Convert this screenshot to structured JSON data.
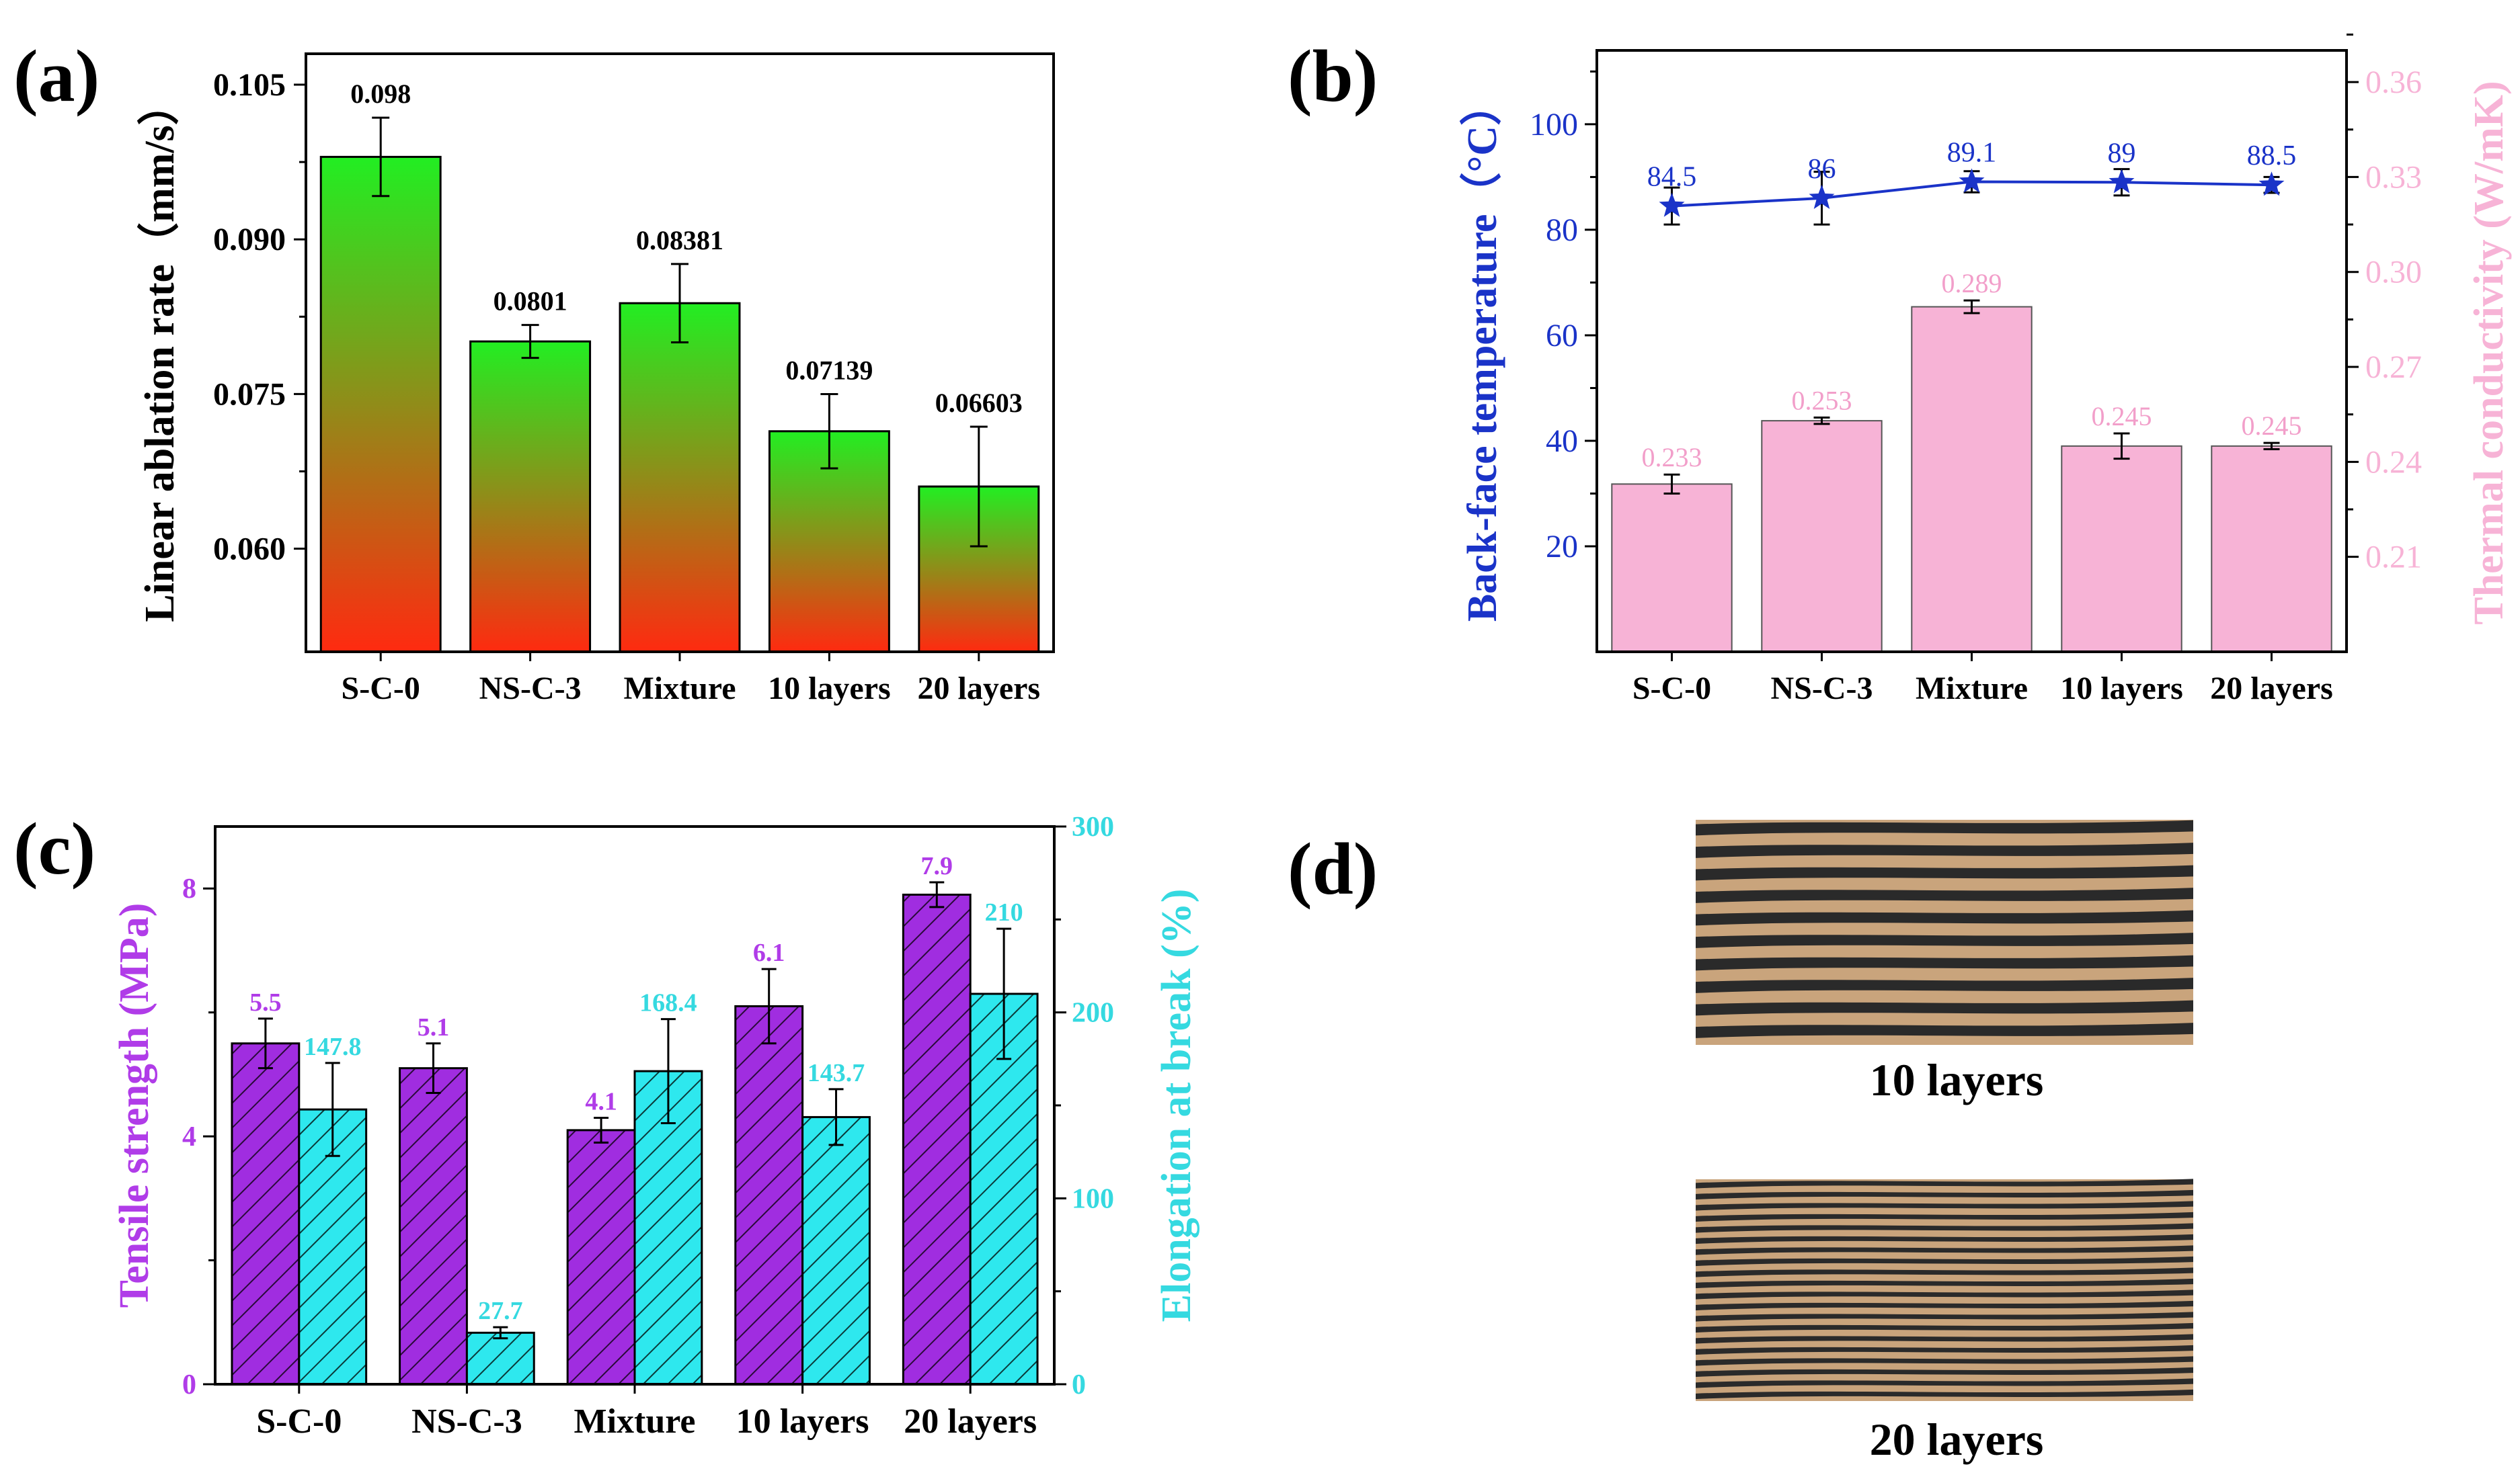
{
  "colors": {
    "axis": "#000000",
    "bar_top_green": "#22ee22",
    "bar_bottom_red": "#ff2a10",
    "temp_line": "#1a33c8",
    "thermal_bar": "#f7b3d6",
    "thermal_label": "#f29fca",
    "tensile_bar": "#a02de0",
    "tensile_label": "#b03ce8",
    "elong_bar": "#2ee8ee",
    "elong_label": "#35d9e0"
  },
  "chart_data": [
    {
      "panel": "(a)",
      "type": "bar",
      "ylabel": "Linear ablation rate（mm/s）",
      "categories": [
        "S-C-0",
        "NS-C-3",
        "Mixture",
        "10 layers",
        "20 layers"
      ],
      "values": [
        0.098,
        0.0801,
        0.08381,
        0.07139,
        0.06603
      ],
      "value_labels": [
        "0.098",
        "0.0801",
        "0.08381",
        "0.07139",
        "0.06603"
      ],
      "errors": [
        0.0038,
        0.0016,
        0.0038,
        0.0036,
        0.0058
      ],
      "ylim": [
        0.05,
        0.108
      ],
      "yticks": [
        0.06,
        0.075,
        0.09,
        0.105
      ],
      "ytick_labels": [
        "0.060",
        "0.075",
        "0.090",
        "0.105"
      ]
    },
    {
      "panel": "(b)",
      "type": "bar+line",
      "categories": [
        "S-C-0",
        "NS-C-3",
        "Mixture",
        "10 layers",
        "20 layers"
      ],
      "line": {
        "name": "Back-face temperature",
        "ylabel": "Back-face temperature（°C）",
        "values": [
          84.5,
          86,
          89.1,
          89,
          88.5
        ],
        "value_labels": [
          "84.5",
          "86",
          "89.1",
          "89",
          "88.5"
        ],
        "errors": [
          3.5,
          5.0,
          2.0,
          2.5,
          1.5
        ],
        "ylim": [
          0,
          114
        ],
        "yticks": [
          20,
          40,
          60,
          80,
          100
        ]
      },
      "bars": {
        "name": "Thermal conductivity",
        "ylabel": "Thermal conductivity (W/mK)",
        "values": [
          0.233,
          0.253,
          0.289,
          0.245,
          0.245
        ],
        "value_labels": [
          "0.233",
          "0.253",
          "0.289",
          "0.245",
          "0.245"
        ],
        "errors": [
          0.003,
          0.001,
          0.002,
          0.004,
          0.001
        ],
        "ylim": [
          0.18,
          0.37
        ],
        "yticks": [
          0.21,
          0.24,
          0.27,
          0.3,
          0.33,
          0.36
        ],
        "ytick_labels": [
          "0.21",
          "0.24",
          "0.27",
          "0.30",
          "0.33",
          "0.36"
        ]
      }
    },
    {
      "panel": "(c)",
      "type": "grouped-bar",
      "categories": [
        "S-C-0",
        "NS-C-3",
        "Mixture",
        "10 layers",
        "20 layers"
      ],
      "series": [
        {
          "name": "Tensile strength",
          "ylabel": "Tensile strength (MPa)",
          "values": [
            5.5,
            5.1,
            4.1,
            6.1,
            7.9
          ],
          "value_labels": [
            "5.5",
            "5.1",
            "4.1",
            "6.1",
            "7.9"
          ],
          "errors": [
            0.4,
            0.4,
            0.2,
            0.6,
            0.2
          ],
          "ylim": [
            0,
            9
          ],
          "yticks": [
            0,
            4,
            8
          ]
        },
        {
          "name": "Elongation at break",
          "ylabel": "Elongation at break (%)",
          "values": [
            147.8,
            27.7,
            168.4,
            143.7,
            210
          ],
          "value_labels": [
            "147.8",
            "27.7",
            "168.4",
            "143.7",
            "210"
          ],
          "errors": [
            25,
            3,
            28,
            15,
            35
          ],
          "ylim": [
            0,
            300
          ],
          "yticks": [
            0,
            100,
            200,
            300
          ]
        }
      ]
    }
  ],
  "panel_d": {
    "label": "(d)",
    "images": [
      {
        "caption": "10 layers",
        "stripes": 10
      },
      {
        "caption": "20 layers",
        "stripes": 20
      }
    ]
  }
}
